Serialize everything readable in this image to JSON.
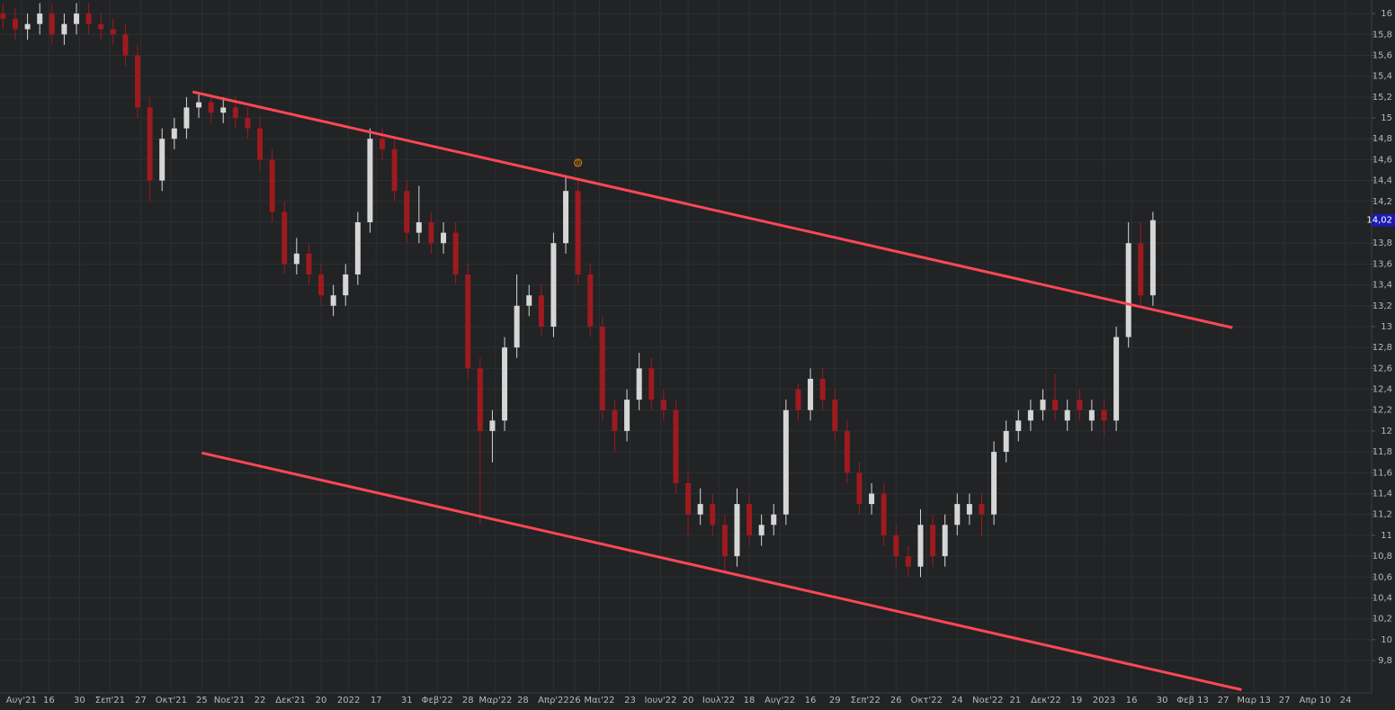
{
  "chart_data": {
    "type": "candlestick",
    "x": [
      -2,
      2,
      6,
      10,
      14,
      18,
      22,
      26,
      30,
      34,
      38,
      42,
      46,
      50,
      54,
      58,
      62,
      66,
      70,
      74,
      78,
      82,
      86,
      90,
      94,
      98,
      102,
      106,
      110,
      114,
      118,
      122,
      126,
      130,
      134,
      138,
      142,
      146,
      150,
      154,
      158,
      162,
      166,
      170,
      174,
      178,
      182,
      186,
      190,
      194,
      198,
      202,
      206,
      210,
      214,
      218,
      222,
      226,
      230,
      234,
      238,
      242,
      246,
      250,
      254,
      258,
      262,
      266,
      270,
      274,
      278,
      282,
      286,
      290,
      294,
      298,
      302,
      306,
      310,
      314,
      318,
      322,
      326,
      330,
      334,
      338,
      342,
      346,
      350,
      354,
      358,
      362,
      366,
      370,
      374
    ],
    "open": [
      16.0,
      15.95,
      15.85,
      15.9,
      16.0,
      15.8,
      15.9,
      16.0,
      15.9,
      15.85,
      15.8,
      15.6,
      15.1,
      14.4,
      14.8,
      14.9,
      15.1,
      15.15,
      15.05,
      15.1,
      15.0,
      14.9,
      14.6,
      14.1,
      13.6,
      13.7,
      13.5,
      13.2,
      13.3,
      13.5,
      14.0,
      14.8,
      14.7,
      14.3,
      13.9,
      14.0,
      13.8,
      13.9,
      13.5,
      12.6,
      12.0,
      12.1,
      12.8,
      13.2,
      13.3,
      13.0,
      13.8,
      14.3,
      13.5,
      13.0,
      12.2,
      12.0,
      12.3,
      12.6,
      12.3,
      12.2,
      11.5,
      11.2,
      11.3,
      11.1,
      10.8,
      11.3,
      11.0,
      11.1,
      11.2,
      12.4,
      12.2,
      12.5,
      12.3,
      12.0,
      11.6,
      11.3,
      11.4,
      11.0,
      10.8,
      10.7,
      11.1,
      10.8,
      11.1,
      11.2,
      11.3,
      11.2,
      11.8,
      12.0,
      12.1,
      12.2,
      12.3,
      12.1,
      12.3,
      12.1,
      12.2,
      12.1,
      12.9,
      13.8,
      13.3
    ],
    "high": [
      16.1,
      16.05,
      16.0,
      16.1,
      16.1,
      16.0,
      16.1,
      16.1,
      16.0,
      15.95,
      15.9,
      15.7,
      15.2,
      14.9,
      15.0,
      15.2,
      15.25,
      15.2,
      15.2,
      15.2,
      15.1,
      15.0,
      14.7,
      14.2,
      13.85,
      13.8,
      13.6,
      13.4,
      13.6,
      14.1,
      14.9,
      14.9,
      14.8,
      14.4,
      14.35,
      14.1,
      14.0,
      14.0,
      13.6,
      12.7,
      12.2,
      12.9,
      13.5,
      13.4,
      13.4,
      13.9,
      14.45,
      14.4,
      13.6,
      13.1,
      12.3,
      12.4,
      12.75,
      12.7,
      12.4,
      12.3,
      11.6,
      11.45,
      11.4,
      11.2,
      11.45,
      11.4,
      11.2,
      11.3,
      12.3,
      12.45,
      12.6,
      12.6,
      12.4,
      12.1,
      11.7,
      11.5,
      11.5,
      11.1,
      10.9,
      11.25,
      11.2,
      11.2,
      11.4,
      11.4,
      11.4,
      11.9,
      12.1,
      12.2,
      12.3,
      12.4,
      12.55,
      12.3,
      12.4,
      12.3,
      12.3,
      13.0,
      14.0,
      14.0,
      14.1
    ],
    "low": [
      15.85,
      15.75,
      15.75,
      15.8,
      15.7,
      15.7,
      15.8,
      15.8,
      15.75,
      15.7,
      15.5,
      15.0,
      14.2,
      14.3,
      14.7,
      14.8,
      15.0,
      14.95,
      14.95,
      14.9,
      14.8,
      14.5,
      14.0,
      13.5,
      13.5,
      13.4,
      13.2,
      13.1,
      13.2,
      13.4,
      13.9,
      14.6,
      14.2,
      13.8,
      13.8,
      13.7,
      13.7,
      13.4,
      12.5,
      11.1,
      11.7,
      12.0,
      12.7,
      13.1,
      12.9,
      12.9,
      13.7,
      13.4,
      12.9,
      12.1,
      11.8,
      11.9,
      12.2,
      12.2,
      12.1,
      11.4,
      11.0,
      11.1,
      11.0,
      10.65,
      10.7,
      10.9,
      10.9,
      11.0,
      11.1,
      12.1,
      12.1,
      12.2,
      11.9,
      11.5,
      11.2,
      11.2,
      10.9,
      10.7,
      10.6,
      10.6,
      10.7,
      10.7,
      11.0,
      11.1,
      11.0,
      11.1,
      11.7,
      11.9,
      12.0,
      12.1,
      12.1,
      12.0,
      12.1,
      12.0,
      11.95,
      12.0,
      12.8,
      13.2,
      13.2
    ],
    "close": [
      15.95,
      15.85,
      15.9,
      16.0,
      15.8,
      15.9,
      16.0,
      15.9,
      15.85,
      15.8,
      15.6,
      15.1,
      14.4,
      14.8,
      14.9,
      15.1,
      15.15,
      15.05,
      15.1,
      15.0,
      14.9,
      14.6,
      14.1,
      13.6,
      13.7,
      13.5,
      13.3,
      13.3,
      13.5,
      14.0,
      14.8,
      14.7,
      14.3,
      13.9,
      14.0,
      13.8,
      13.9,
      13.5,
      12.6,
      12.0,
      12.1,
      12.8,
      13.2,
      13.3,
      13.0,
      13.8,
      14.3,
      13.5,
      13.0,
      12.2,
      12.0,
      12.3,
      12.6,
      12.3,
      12.2,
      11.5,
      11.2,
      11.3,
      11.1,
      10.8,
      11.3,
      11.0,
      11.1,
      11.2,
      12.2,
      12.2,
      12.5,
      12.3,
      12.0,
      11.6,
      11.3,
      11.4,
      11.0,
      10.8,
      10.7,
      11.1,
      10.8,
      11.1,
      11.3,
      11.3,
      11.2,
      11.8,
      12.0,
      12.1,
      12.2,
      12.3,
      12.2,
      12.2,
      12.2,
      12.2,
      12.1,
      12.9,
      13.8,
      13.3,
      14.02
    ],
    "up_color": "#d6d6d6",
    "down_color": "#9e1a1f",
    "xlim": [
      -3,
      445.5
    ],
    "ylim": [
      9.49,
      16.13
    ],
    "grid": true,
    "xticks": [
      {
        "value": 4,
        "label": "Αυγ'21"
      },
      {
        "value": 13,
        "label": "16"
      },
      {
        "value": 23,
        "label": "30"
      },
      {
        "value": 33,
        "label": "Σεπ'21"
      },
      {
        "value": 43,
        "label": "27"
      },
      {
        "value": 53,
        "label": "Οκτ'21"
      },
      {
        "value": 63,
        "label": "25"
      },
      {
        "value": 72,
        "label": "Νοε'21"
      },
      {
        "value": 82,
        "label": "22"
      },
      {
        "value": 92,
        "label": "Δεκ'21"
      },
      {
        "value": 102,
        "label": "20"
      },
      {
        "value": 111,
        "label": "2022"
      },
      {
        "value": 120,
        "label": "17"
      },
      {
        "value": 130,
        "label": "31"
      },
      {
        "value": 140,
        "label": "Φεβ'22"
      },
      {
        "value": 150,
        "label": "28"
      },
      {
        "value": 159,
        "label": "Μαρ'22"
      },
      {
        "value": 168,
        "label": "28"
      },
      {
        "value": 178,
        "label": "Απρ'22"
      },
      {
        "value": 185,
        "label": "26"
      },
      {
        "value": 193,
        "label": "Μαι'22"
      },
      {
        "value": 203,
        "label": "23"
      },
      {
        "value": 213,
        "label": "Ιουν'22"
      },
      {
        "value": 222,
        "label": "20"
      },
      {
        "value": 232,
        "label": "Ιουλ'22"
      },
      {
        "value": 242,
        "label": "18"
      },
      {
        "value": 252,
        "label": "Αυγ'22"
      },
      {
        "value": 262,
        "label": "16"
      },
      {
        "value": 270,
        "label": "29"
      },
      {
        "value": 280,
        "label": "Σεπ'22"
      },
      {
        "value": 290,
        "label": "26"
      },
      {
        "value": 300,
        "label": "Οκτ'22"
      },
      {
        "value": 310,
        "label": "24"
      },
      {
        "value": 320,
        "label": "Νοε'22"
      },
      {
        "value": 329,
        "label": "21"
      },
      {
        "value": 339,
        "label": "Δεκ'22"
      },
      {
        "value": 349,
        "label": "19"
      },
      {
        "value": 358,
        "label": "2023"
      },
      {
        "value": 367,
        "label": "16"
      },
      {
        "value": 377,
        "label": "30"
      },
      {
        "value": 387,
        "label": "Φεβ 13"
      },
      {
        "value": 397,
        "label": "27"
      },
      {
        "value": 407,
        "label": "Μαρ 13"
      },
      {
        "value": 417,
        "label": "27"
      },
      {
        "value": 427,
        "label": "Απρ 10"
      },
      {
        "value": 437,
        "label": "24"
      }
    ],
    "yticks": [
      {
        "value": 9.8,
        "label": "9,8"
      },
      10,
      {
        "value": 10.2,
        "label": "10,2"
      },
      {
        "value": 10.4,
        "label": "10,4"
      },
      {
        "value": 10.6,
        "label": "10,6"
      },
      {
        "value": 10.8,
        "label": "10,8"
      },
      11,
      {
        "value": 11.2,
        "label": "11,2"
      },
      {
        "value": 11.4,
        "label": "11,4"
      },
      {
        "value": 11.6,
        "label": "11,6"
      },
      {
        "value": 11.8,
        "label": "11,8"
      },
      12,
      {
        "value": 12.2,
        "label": "12,2"
      },
      {
        "value": 12.4,
        "label": "12,4"
      },
      {
        "value": 12.6,
        "label": "12,6"
      },
      {
        "value": 12.8,
        "label": "12,8"
      },
      13,
      {
        "value": 13.2,
        "label": "13,2"
      },
      {
        "value": 13.4,
        "label": "13,4"
      },
      {
        "value": 13.6,
        "label": "13,6"
      },
      {
        "value": 13.8,
        "label": "13,8"
      },
      14,
      {
        "value": 14.2,
        "label": "14,2"
      },
      {
        "value": 14.4,
        "label": "14,4"
      },
      {
        "value": 14.6,
        "label": "14,6"
      },
      {
        "value": 14.8,
        "label": "14,8"
      },
      15,
      {
        "value": 15.2,
        "label": "15,2"
      },
      {
        "value": 15.4,
        "label": "15,4"
      },
      {
        "value": 15.6,
        "label": "15,6"
      },
      {
        "value": 15.8,
        "label": "15,8"
      },
      16
    ],
    "trendlines": [
      {
        "color": "#ff4755",
        "x": [
          60,
          400
        ],
        "y": [
          15.25,
          12.99
        ]
      },
      {
        "color": "#ff4755",
        "x": [
          63,
          403
        ],
        "y": [
          11.79,
          9.52
        ]
      }
    ],
    "markers": [
      {
        "x": 186,
        "y": 14.57,
        "label": "D",
        "color": "#e08a1e"
      }
    ],
    "last_price": {
      "value": 14.02,
      "label": "14,02",
      "color": "#1c1cb0"
    }
  }
}
